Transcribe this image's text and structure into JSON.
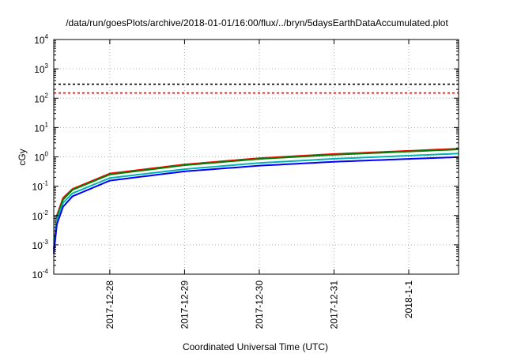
{
  "chart_data": {
    "type": "line",
    "title": "/data/run/goesPlots/archive/2018-01-01/16:00/flux/../bryn/5daysEarthDataAccumulated.plot",
    "xlabel": "Coordinated Universal Time (UTC)",
    "ylabel": "cGy",
    "x_scale": "time",
    "y_scale": "log",
    "xlim": [
      "2017-12-27 06:00",
      "2018-01-01 16:00"
    ],
    "ylim": [
      0.0001,
      10000
    ],
    "grid": true,
    "x_ticks": [
      {
        "value": "2017-12-28 00:00",
        "label": "2017-12-28"
      },
      {
        "value": "2017-12-29 00:00",
        "label": "2017-12-29"
      },
      {
        "value": "2017-12-30 00:00",
        "label": "2017-12-30"
      },
      {
        "value": "2017-12-31 00:00",
        "label": "2017-12-31"
      },
      {
        "value": "2018-01-01 00:00",
        "label": "2018-1-1"
      }
    ],
    "y_ticks": [
      {
        "value": 0.0001,
        "base": "10",
        "exp": "-4"
      },
      {
        "value": 0.001,
        "base": "10",
        "exp": "-3"
      },
      {
        "value": 0.01,
        "base": "10",
        "exp": "-2"
      },
      {
        "value": 0.1,
        "base": "10",
        "exp": "-1"
      },
      {
        "value": 1,
        "base": "10",
        "exp": "0"
      },
      {
        "value": 10,
        "base": "10",
        "exp": "1"
      },
      {
        "value": 100,
        "base": "10",
        "exp": "2"
      },
      {
        "value": 1000,
        "base": "10",
        "exp": "3"
      },
      {
        "value": 10000,
        "base": "10",
        "exp": "4"
      }
    ],
    "reference_lines": [
      {
        "y": 300,
        "color": "#000000",
        "dash": true
      },
      {
        "y": 150,
        "color": "#ff0000",
        "dash": true
      }
    ],
    "series": [
      {
        "color": "#ff0000",
        "points": [
          [
            "2017-12-27 06:00",
            0.0007
          ],
          [
            "2017-12-27 07:00",
            0.01
          ],
          [
            "2017-12-27 09:00",
            0.04
          ],
          [
            "2017-12-27 12:00",
            0.08
          ],
          [
            "2017-12-28 00:00",
            0.27
          ],
          [
            "2017-12-29 00:00",
            0.55
          ],
          [
            "2017-12-30 00:00",
            0.9
          ],
          [
            "2017-12-31 00:00",
            1.25
          ],
          [
            "2018-01-01 00:00",
            1.6
          ],
          [
            "2018-01-01 16:00",
            1.9
          ]
        ]
      },
      {
        "color": "#008000",
        "points": [
          [
            "2017-12-27 06:00",
            0.0007
          ],
          [
            "2017-12-27 07:00",
            0.009
          ],
          [
            "2017-12-27 09:00",
            0.035
          ],
          [
            "2017-12-27 12:00",
            0.075
          ],
          [
            "2017-12-28 00:00",
            0.25
          ],
          [
            "2017-12-29 00:00",
            0.52
          ],
          [
            "2017-12-30 00:00",
            0.85
          ],
          [
            "2017-12-31 00:00",
            1.18
          ],
          [
            "2018-01-01 00:00",
            1.52
          ],
          [
            "2018-01-01 16:00",
            1.8
          ]
        ]
      },
      {
        "color": "#00b4b4",
        "points": [
          [
            "2017-12-27 06:00",
            0.0006
          ],
          [
            "2017-12-27 07:00",
            0.007
          ],
          [
            "2017-12-27 09:00",
            0.027
          ],
          [
            "2017-12-27 12:00",
            0.057
          ],
          [
            "2017-12-28 00:00",
            0.19
          ],
          [
            "2017-12-29 00:00",
            0.38
          ],
          [
            "2017-12-30 00:00",
            0.62
          ],
          [
            "2017-12-31 00:00",
            0.86
          ],
          [
            "2018-01-01 00:00",
            1.1
          ],
          [
            "2018-01-01 16:00",
            1.3
          ]
        ]
      },
      {
        "color": "#0000ff",
        "points": [
          [
            "2017-12-27 06:00",
            0.0005
          ],
          [
            "2017-12-27 07:00",
            0.005
          ],
          [
            "2017-12-27 09:00",
            0.02
          ],
          [
            "2017-12-27 12:00",
            0.045
          ],
          [
            "2017-12-28 00:00",
            0.155
          ],
          [
            "2017-12-29 00:00",
            0.32
          ],
          [
            "2017-12-30 00:00",
            0.5
          ],
          [
            "2017-12-31 00:00",
            0.68
          ],
          [
            "2018-01-01 00:00",
            0.85
          ],
          [
            "2018-01-01 16:00",
            0.98
          ]
        ]
      }
    ]
  }
}
